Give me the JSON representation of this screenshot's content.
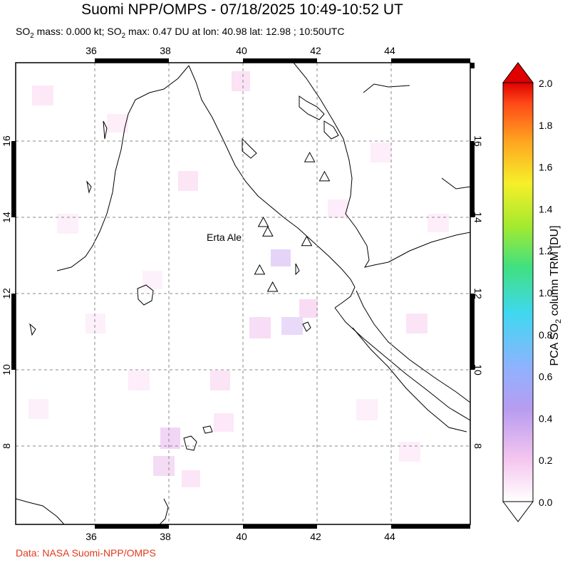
{
  "title": "Suomi NPP/OMPS - 07/18/2025 10:49-10:52 UT",
  "subtitle": {
    "mass_prefix": "SO",
    "mass_sub": "2",
    "mass_text": " mass: 0.000 kt; SO",
    "max_sub": "2",
    "max_text": " max: 0.47 DU at lon: 40.98 lat: 12.98 ; 10:50UTC"
  },
  "map": {
    "lon_ticks": [
      "36",
      "38",
      "40",
      "42",
      "44"
    ],
    "lat_ticks": [
      "16",
      "14",
      "12",
      "10",
      "8"
    ],
    "volcano_label": "Erta Ale",
    "volcanoes": [
      {
        "lon": 41.8,
        "lat": 15.55
      },
      {
        "lon": 42.2,
        "lat": 15.05
      },
      {
        "lon": 40.55,
        "lat": 13.85
      },
      {
        "lon": 40.67,
        "lat": 13.6
      },
      {
        "lon": 41.72,
        "lat": 13.35
      },
      {
        "lon": 40.45,
        "lat": 12.6
      },
      {
        "lon": 40.8,
        "lat": 12.15
      }
    ]
  },
  "colorbar": {
    "ticks": [
      "2.0",
      "1.8",
      "1.6",
      "1.4",
      "1.2",
      "1.0",
      "0.8",
      "0.6",
      "0.4",
      "0.2",
      "0.0"
    ],
    "label_pre": "PCA SO",
    "label_sub": "2",
    "label_post": " column TRM [DU]",
    "colors": [
      "#ffffff",
      "#f5c6ef",
      "#b89cf0",
      "#7fb0ff",
      "#3fd8f0",
      "#40e080",
      "#a6ea2e",
      "#f6ef2a",
      "#ffa520",
      "#ff4a18",
      "#e00000"
    ]
  },
  "credit": "Data: NASA Suomi-NPP/OMPS"
}
